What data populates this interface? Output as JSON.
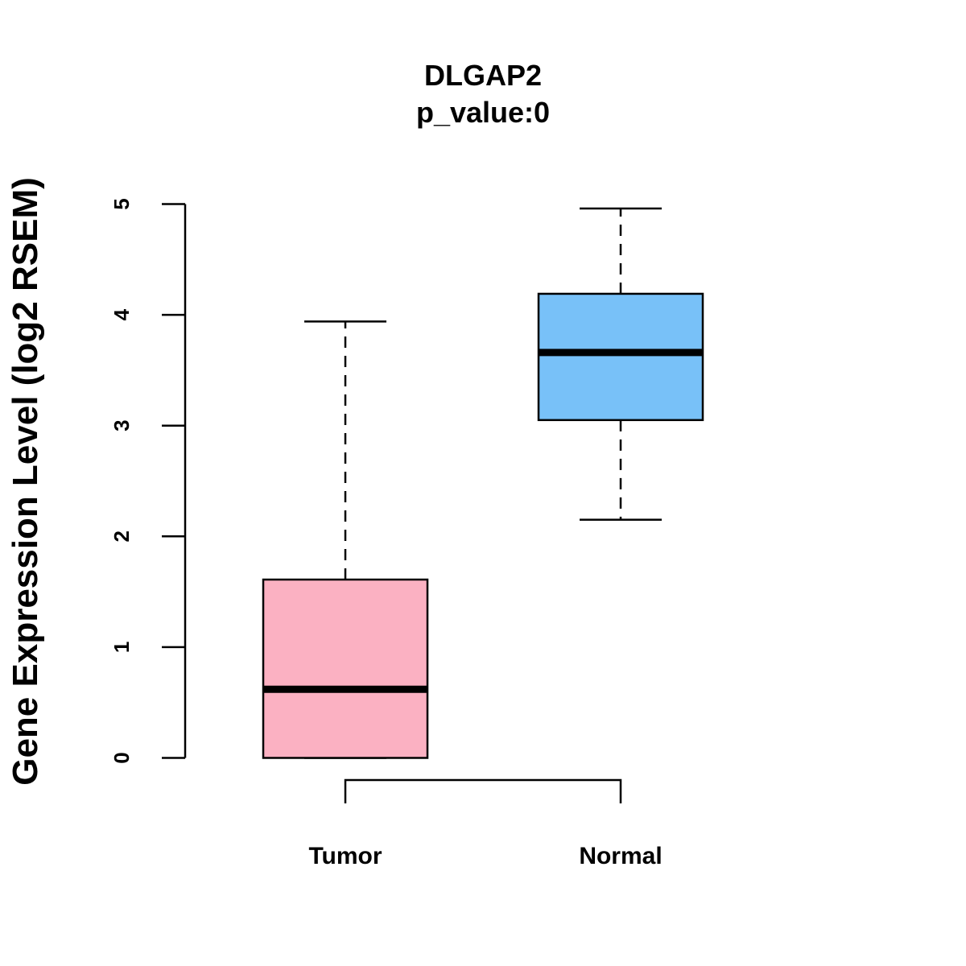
{
  "chart_data": {
    "type": "boxplot",
    "title": "DLGAP2",
    "subtitle": "p_value:0",
    "xlabel": "",
    "ylabel": "Gene Expression Level (log2 RSEM)",
    "ylim": [
      0,
      5
    ],
    "yticks": [
      0,
      1,
      2,
      3,
      4,
      5
    ],
    "grid": false,
    "categories": [
      "Tumor",
      "Normal"
    ],
    "series": [
      {
        "name": "Tumor",
        "color": "#FBB1C2",
        "whisker_low": 0.0,
        "q1": 0.0,
        "median": 0.62,
        "q3": 1.61,
        "whisker_high": 3.94
      },
      {
        "name": "Normal",
        "color": "#78C1F8",
        "whisker_low": 2.15,
        "q1": 3.05,
        "median": 3.66,
        "q3": 4.19,
        "whisker_high": 4.96
      }
    ],
    "comparison_bracket": [
      "Tumor",
      "Normal"
    ]
  }
}
